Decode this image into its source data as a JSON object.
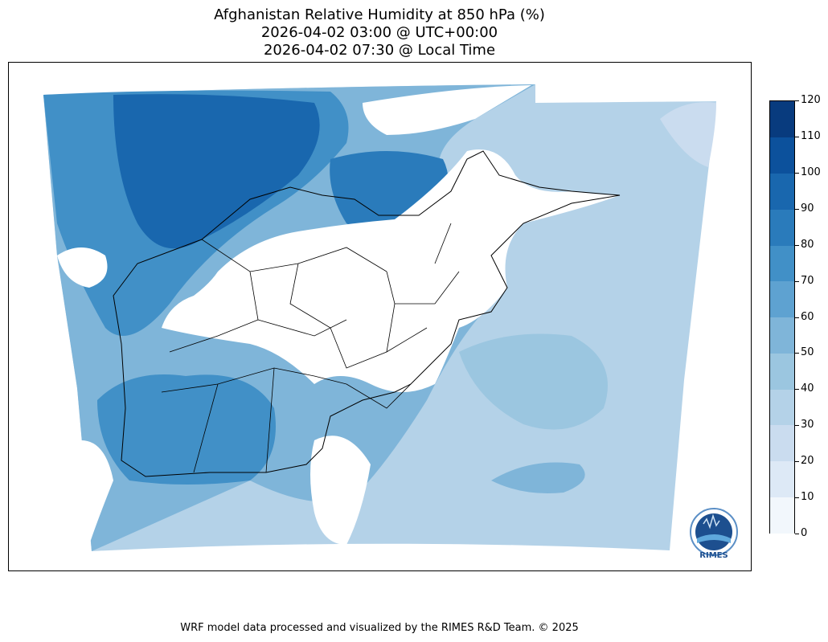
{
  "title": {
    "line1": "Afghanistan Relative Humidity at 850 hPa (%)",
    "line2": "2026-04-02 03:00 @ UTC+00:00",
    "line3": "2026-04-02 07:30 @ Local Time"
  },
  "colorbar": {
    "ticks": [
      "0",
      "10",
      "20",
      "30",
      "40",
      "50",
      "60",
      "70",
      "80",
      "90",
      "100",
      "110",
      "120"
    ],
    "colors": [
      "#f2f7fc",
      "#dde9f6",
      "#cadcef",
      "#b4d2e8",
      "#9bc6e0",
      "#7fb5d9",
      "#5ea2d1",
      "#4190c7",
      "#2a7bbb",
      "#1967ae",
      "#0c519c",
      "#083b7e"
    ]
  },
  "footer": {
    "credit": "WRF model data processed and visualized by the RIMES R&D Team. © 2025"
  },
  "logo": {
    "text": "RIMES",
    "icon": "rimes-globe-logo"
  }
}
